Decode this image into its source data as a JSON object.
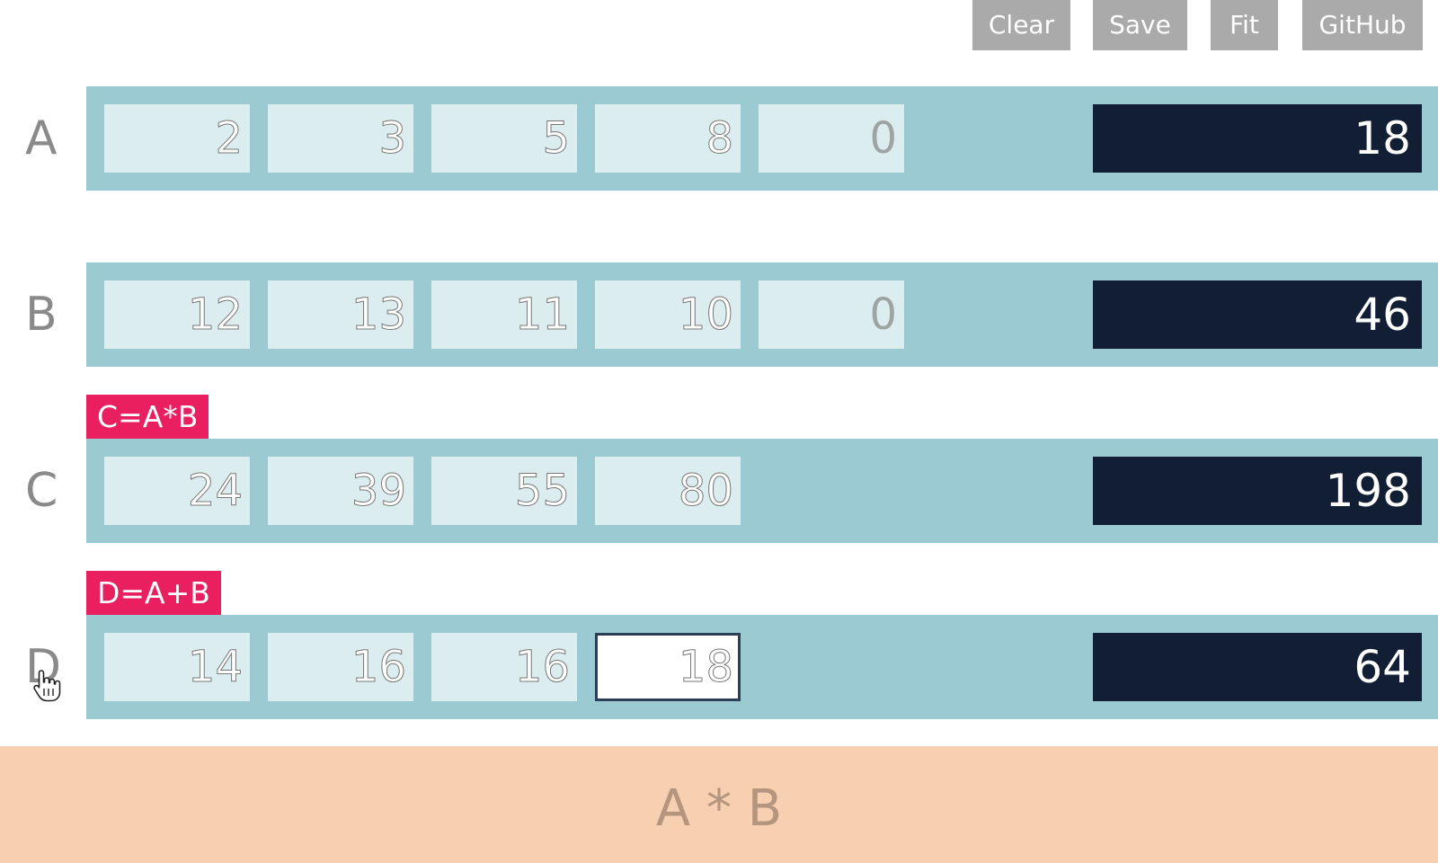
{
  "toolbar": {
    "buttons": [
      {
        "id": "clear",
        "label": "Clear"
      },
      {
        "id": "save",
        "label": "Save"
      },
      {
        "id": "fit",
        "label": "Fit"
      },
      {
        "id": "github",
        "label": "GitHub"
      }
    ]
  },
  "rows": [
    {
      "label": "A",
      "cells": [
        "2",
        "3",
        "5",
        "8",
        "0"
      ],
      "total": "18",
      "formula": null
    },
    {
      "label": "B",
      "cells": [
        "12",
        "13",
        "11",
        "10",
        "0"
      ],
      "total": "46",
      "formula": null
    },
    {
      "label": "C",
      "cells": [
        "24",
        "39",
        "55",
        "80"
      ],
      "total": "198",
      "formula": "C=A*B"
    },
    {
      "label": "D",
      "cells": [
        "14",
        "16",
        "16",
        "18"
      ],
      "total": "64",
      "formula": "D=A+B"
    }
  ],
  "focused_cell": {
    "row": "D",
    "index": 3
  },
  "footer": {
    "text": "A * B"
  },
  "cursor": {
    "icon": "hand-pointer-icon"
  },
  "colors": {
    "button_bg": "#aaaaaa",
    "band_bg": "#9ccad2",
    "cell_bg": "#dcedf0",
    "total_bg": "#111e33",
    "formula_bg": "#e91f5f",
    "footer_bg": "#f7cfb1",
    "footer_text": "#b5957d"
  }
}
